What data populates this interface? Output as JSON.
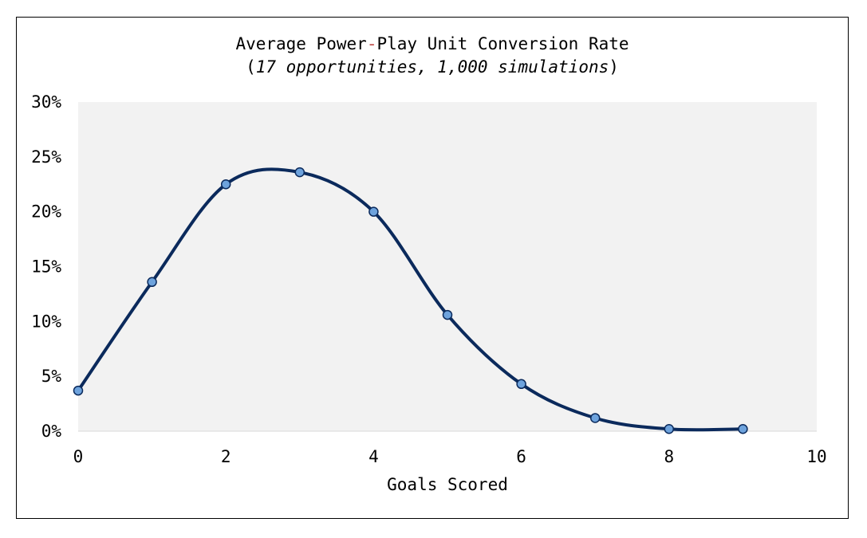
{
  "chart_data": {
    "type": "scatter",
    "title": "Average Power-Play Unit Conversion Rate",
    "title_prefix": "Average Power",
    "title_hyphen": "-",
    "title_suffix": "Play Unit Conversion Rate",
    "subtitle_open": "(",
    "subtitle": "17 opportunities, 1,000 simulations",
    "subtitle_close": ")",
    "xlabel": "Goals Scored",
    "ylabel": "",
    "x": [
      0,
      1,
      2,
      3,
      4,
      5,
      6,
      7,
      8,
      9
    ],
    "y": [
      3.7,
      13.6,
      22.5,
      23.6,
      20.0,
      10.6,
      4.3,
      1.2,
      0.2,
      0.2
    ],
    "xlim": [
      0,
      10
    ],
    "ylim": [
      0,
      30
    ],
    "x_ticks": [
      "0",
      "2",
      "4",
      "6",
      "8",
      "10"
    ],
    "x_tick_values": [
      0,
      2,
      4,
      6,
      8,
      10
    ],
    "y_ticks": [
      "0%",
      "5%",
      "10%",
      "15%",
      "20%",
      "25%",
      "30%"
    ],
    "y_tick_values": [
      0,
      5,
      10,
      15,
      20,
      25,
      30
    ],
    "smoothed_line": true,
    "grid": false,
    "legend": "none",
    "colors": {
      "line": "#0b2a5c",
      "marker_fill": "#6ea3dd",
      "marker_stroke": "#0b2a5c",
      "plot_bg": "#f2f2f2",
      "hyphen": "#c0504d"
    }
  }
}
